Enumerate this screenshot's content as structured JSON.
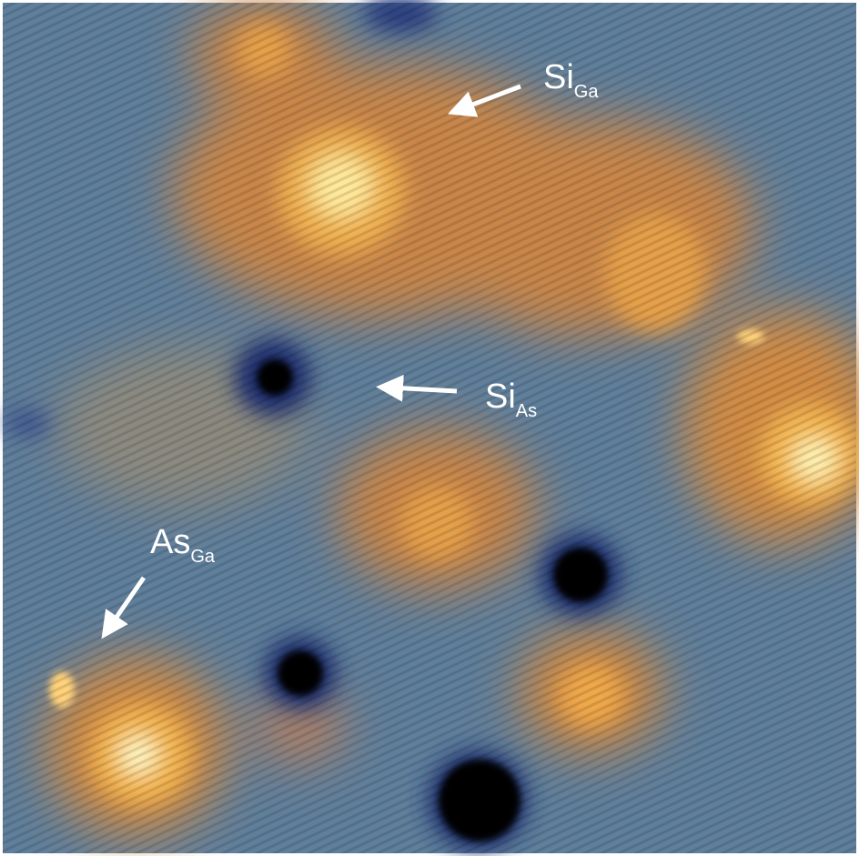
{
  "labels": [
    {
      "main": "Si",
      "sub": "Ga"
    },
    {
      "main": "Si",
      "sub": "As"
    },
    {
      "main": "As",
      "sub": "Ga"
    }
  ]
}
